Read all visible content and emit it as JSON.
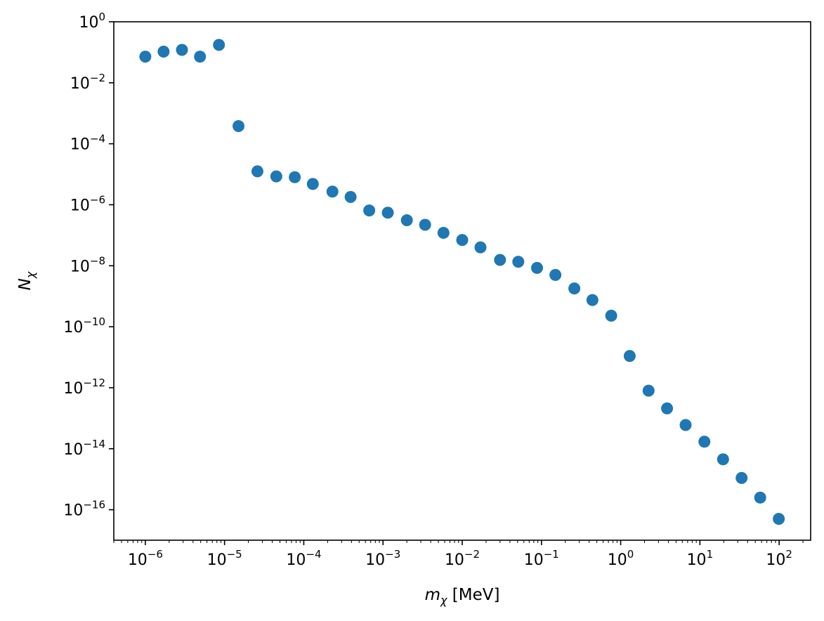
{
  "chart_data": {
    "type": "scatter",
    "xscale": "log",
    "yscale": "log",
    "xlabel": {
      "symbol": "m",
      "subscript": "χ",
      "unit": "[MeV]"
    },
    "ylabel": {
      "symbol": "N",
      "subscript": "χ"
    },
    "xlim": [
      4e-07,
      250
    ],
    "ylim": [
      1e-17,
      1
    ],
    "grid": false,
    "marker_color": "#1f77b4",
    "x_major_ticks": [
      {
        "value": 1e-06,
        "label": "10",
        "exp": "−6"
      },
      {
        "value": 1e-05,
        "label": "10",
        "exp": "−5"
      },
      {
        "value": 0.0001,
        "label": "10",
        "exp": "−4"
      },
      {
        "value": 0.001,
        "label": "10",
        "exp": "−3"
      },
      {
        "value": 0.01,
        "label": "10",
        "exp": "−2"
      },
      {
        "value": 0.1,
        "label": "10",
        "exp": "−1"
      },
      {
        "value": 1,
        "label": "10",
        "exp": "0"
      },
      {
        "value": 10,
        "label": "10",
        "exp": "1"
      },
      {
        "value": 100,
        "label": "10",
        "exp": "2"
      }
    ],
    "y_major_ticks": [
      {
        "value": 1,
        "label": "10",
        "exp": "0"
      },
      {
        "value": 0.01,
        "label": "10",
        "exp": "−2"
      },
      {
        "value": 0.0001,
        "label": "10",
        "exp": "−4"
      },
      {
        "value": 1e-06,
        "label": "10",
        "exp": "−6"
      },
      {
        "value": 1e-08,
        "label": "10",
        "exp": "−8"
      },
      {
        "value": 1e-10,
        "label": "10",
        "exp": "−10"
      },
      {
        "value": 1e-12,
        "label": "10",
        "exp": "−12"
      },
      {
        "value": 1e-14,
        "label": "10",
        "exp": "−14"
      },
      {
        "value": 1e-16,
        "label": "10",
        "exp": "−16"
      }
    ],
    "series": [
      {
        "points": [
          {
            "x": 1e-06,
            "y": 0.072
          },
          {
            "x": 1.7e-06,
            "y": 0.105
          },
          {
            "x": 2.9e-06,
            "y": 0.12
          },
          {
            "x": 4.9e-06,
            "y": 0.072
          },
          {
            "x": 8.5e-06,
            "y": 0.175
          },
          {
            "x": 1.5e-05,
            "y": 0.00038
          },
          {
            "x": 2.6e-05,
            "y": 1.25e-05
          },
          {
            "x": 4.5e-05,
            "y": 8.5e-06
          },
          {
            "x": 7.7e-05,
            "y": 8e-06
          },
          {
            "x": 0.00013,
            "y": 4.8e-06
          },
          {
            "x": 0.00023,
            "y": 2.7e-06
          },
          {
            "x": 0.00039,
            "y": 1.8e-06
          },
          {
            "x": 0.00067,
            "y": 6.5e-07
          },
          {
            "x": 0.00115,
            "y": 5.5e-07
          },
          {
            "x": 0.002,
            "y": 3.1e-07
          },
          {
            "x": 0.0034,
            "y": 2.2e-07
          },
          {
            "x": 0.0058,
            "y": 1.2e-07
          },
          {
            "x": 0.01,
            "y": 7e-08
          },
          {
            "x": 0.017,
            "y": 4e-08
          },
          {
            "x": 0.03,
            "y": 1.55e-08
          },
          {
            "x": 0.051,
            "y": 1.35e-08
          },
          {
            "x": 0.088,
            "y": 8.5e-09
          },
          {
            "x": 0.15,
            "y": 5e-09
          },
          {
            "x": 0.26,
            "y": 1.8e-09
          },
          {
            "x": 0.44,
            "y": 7.5e-10
          },
          {
            "x": 0.76,
            "y": 2.3e-10
          },
          {
            "x": 1.3,
            "y": 1.1e-11
          },
          {
            "x": 2.25,
            "y": 8e-13
          },
          {
            "x": 3.85,
            "y": 2.1e-13
          },
          {
            "x": 6.6,
            "y": 6e-14
          },
          {
            "x": 11.4,
            "y": 1.7e-14
          },
          {
            "x": 19.6,
            "y": 4.5e-15
          },
          {
            "x": 33.6,
            "y": 1.1e-15
          },
          {
            "x": 57.7,
            "y": 2.5e-16
          },
          {
            "x": 99.0,
            "y": 5e-17
          }
        ]
      }
    ]
  }
}
